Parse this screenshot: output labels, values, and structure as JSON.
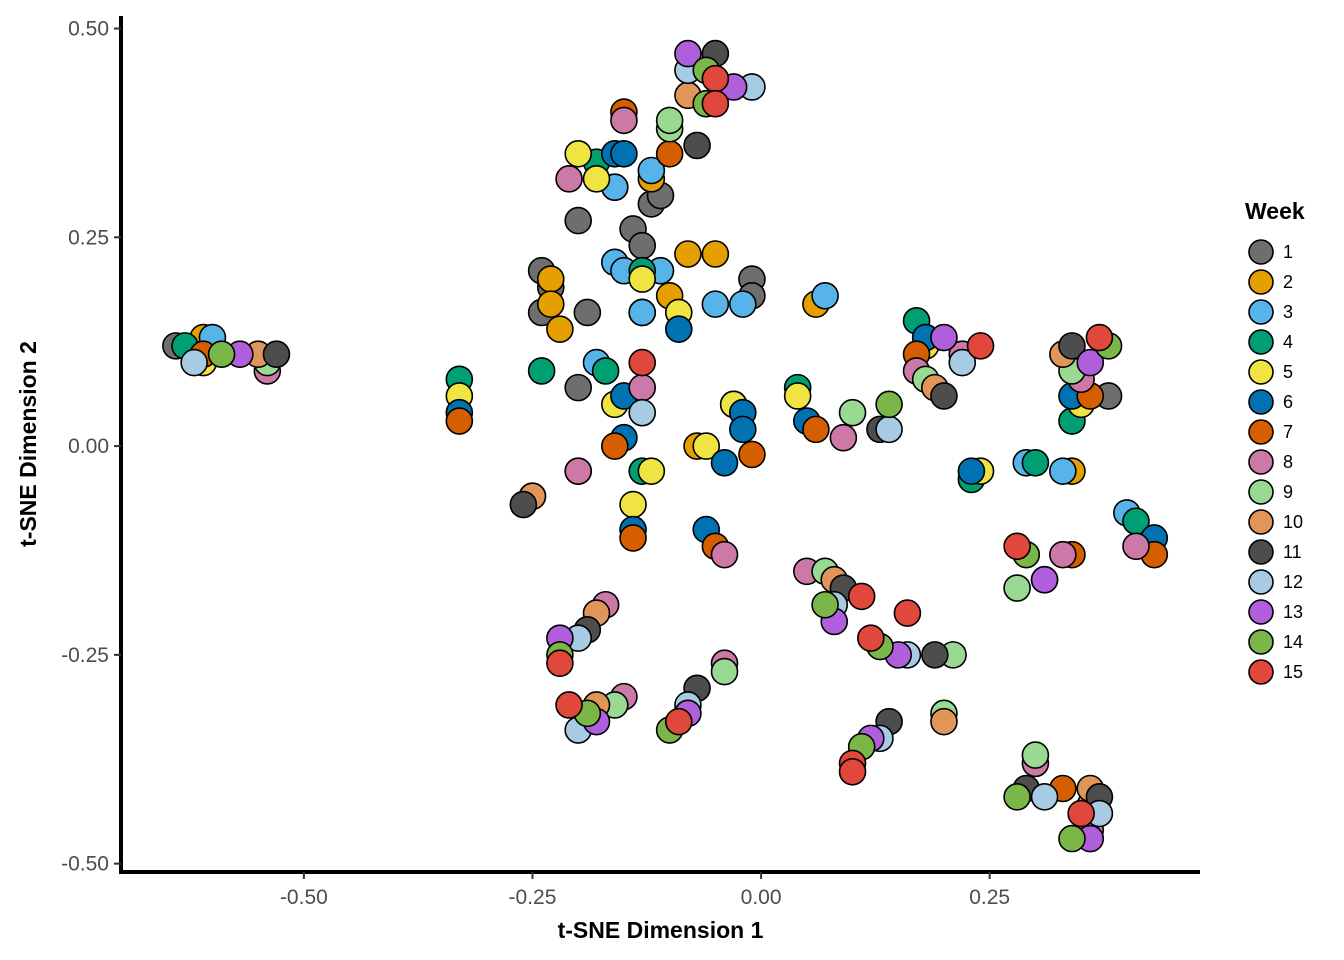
{
  "chart_data": {
    "type": "scatter",
    "xlabel": "t-SNE Dimension 1",
    "ylabel": "t-SNE Dimension 2",
    "xlim": [
      -0.7,
      0.48
    ],
    "ylim": [
      -0.51,
      0.515
    ],
    "x_ticks": [
      -0.5,
      -0.25,
      0.0,
      0.25
    ],
    "x_tick_labels": [
      "-0.50",
      "-0.25",
      "0.00",
      "0.25"
    ],
    "y_ticks": [
      0.5,
      0.25,
      0.0,
      -0.25,
      -0.5
    ],
    "y_tick_labels": [
      "0.50",
      "0.25",
      "0.00",
      "-0.25",
      "-0.50"
    ],
    "grid": false,
    "legend": {
      "title": "Week",
      "position": "right"
    },
    "series": [
      {
        "name": "1",
        "color": "#6e6e6e",
        "points": [
          [
            -0.64,
            0.12
          ],
          [
            -0.2,
            0.27
          ],
          [
            -0.14,
            0.26
          ],
          [
            -0.13,
            0.24
          ],
          [
            -0.12,
            0.29
          ],
          [
            -0.11,
            0.3
          ],
          [
            -0.24,
            0.21
          ],
          [
            -0.24,
            0.16
          ],
          [
            -0.19,
            0.16
          ],
          [
            -0.2,
            0.07
          ],
          [
            -0.01,
            0.2
          ],
          [
            -0.01,
            0.18
          ],
          [
            -0.23,
            0.19
          ],
          [
            0.38,
            0.06
          ]
        ]
      },
      {
        "name": "2",
        "color": "#e69f00",
        "points": [
          [
            -0.61,
            0.13
          ],
          [
            -0.23,
            0.2
          ],
          [
            -0.23,
            0.17
          ],
          [
            -0.22,
            0.14
          ],
          [
            -0.16,
            0.31
          ],
          [
            -0.12,
            0.32
          ],
          [
            -0.13,
            0.16
          ],
          [
            -0.1,
            0.18
          ],
          [
            -0.08,
            0.23
          ],
          [
            -0.05,
            0.23
          ],
          [
            -0.07,
            0.0
          ],
          [
            0.06,
            0.17
          ],
          [
            0.34,
            -0.03
          ]
        ]
      },
      {
        "name": "3",
        "color": "#56b4e9",
        "points": [
          [
            -0.6,
            0.13
          ],
          [
            -0.16,
            0.22
          ],
          [
            -0.15,
            0.21
          ],
          [
            -0.13,
            0.16
          ],
          [
            -0.12,
            0.33
          ],
          [
            -0.11,
            0.21
          ],
          [
            -0.16,
            0.31
          ],
          [
            -0.05,
            0.17
          ],
          [
            -0.02,
            0.17
          ],
          [
            0.07,
            0.18
          ],
          [
            -0.18,
            0.1
          ],
          [
            -0.03,
            0.05
          ],
          [
            0.29,
            -0.02
          ],
          [
            0.33,
            -0.03
          ],
          [
            0.4,
            -0.08
          ]
        ]
      },
      {
        "name": "4",
        "color": "#009e73",
        "points": [
          [
            -0.63,
            0.12
          ],
          [
            -0.33,
            0.08
          ],
          [
            -0.24,
            0.09
          ],
          [
            -0.17,
            0.09
          ],
          [
            -0.13,
            0.21
          ],
          [
            -0.18,
            0.34
          ],
          [
            -0.13,
            -0.03
          ],
          [
            0.04,
            0.07
          ],
          [
            0.17,
            0.15
          ],
          [
            0.23,
            -0.04
          ],
          [
            0.3,
            -0.02
          ],
          [
            0.34,
            0.03
          ],
          [
            0.41,
            -0.09
          ]
        ]
      },
      {
        "name": "5",
        "color": "#f0e442",
        "points": [
          [
            -0.61,
            0.1
          ],
          [
            -0.33,
            0.06
          ],
          [
            -0.2,
            0.35
          ],
          [
            -0.18,
            0.32
          ],
          [
            -0.13,
            0.2
          ],
          [
            -0.09,
            0.16
          ],
          [
            -0.16,
            0.05
          ],
          [
            -0.12,
            -0.03
          ],
          [
            -0.14,
            -0.07
          ],
          [
            -0.03,
            0.05
          ],
          [
            -0.06,
            0.0
          ],
          [
            0.04,
            0.06
          ],
          [
            0.18,
            0.12
          ],
          [
            0.24,
            -0.03
          ],
          [
            0.35,
            0.05
          ]
        ]
      },
      {
        "name": "6",
        "color": "#0072b2",
        "points": [
          [
            -0.33,
            0.04
          ],
          [
            -0.16,
            0.35
          ],
          [
            -0.15,
            0.35
          ],
          [
            -0.09,
            0.14
          ],
          [
            -0.15,
            0.06
          ],
          [
            -0.15,
            0.01
          ],
          [
            -0.14,
            -0.1
          ],
          [
            -0.06,
            -0.1
          ],
          [
            -0.02,
            0.04
          ],
          [
            -0.02,
            0.02
          ],
          [
            -0.04,
            -0.02
          ],
          [
            0.05,
            0.03
          ],
          [
            0.18,
            0.13
          ],
          [
            0.23,
            -0.03
          ],
          [
            0.34,
            0.06
          ],
          [
            0.43,
            -0.11
          ]
        ]
      },
      {
        "name": "7",
        "color": "#d55e00",
        "points": [
          [
            -0.61,
            0.11
          ],
          [
            -0.33,
            0.03
          ],
          [
            -0.15,
            0.4
          ],
          [
            -0.1,
            0.35
          ],
          [
            -0.16,
            0.0
          ],
          [
            -0.14,
            -0.11
          ],
          [
            -0.05,
            -0.12
          ],
          [
            -0.01,
            -0.01
          ],
          [
            0.06,
            0.02
          ],
          [
            0.17,
            0.11
          ],
          [
            -0.2,
            -0.03
          ],
          [
            0.34,
            -0.13
          ],
          [
            0.36,
            0.06
          ],
          [
            0.43,
            -0.13
          ],
          [
            0.33,
            -0.41
          ]
        ]
      },
      {
        "name": "8",
        "color": "#cc79a7",
        "points": [
          [
            -0.54,
            0.09
          ],
          [
            -0.21,
            0.32
          ],
          [
            -0.15,
            0.39
          ],
          [
            -0.13,
            0.07
          ],
          [
            -0.2,
            -0.03
          ],
          [
            -0.04,
            -0.13
          ],
          [
            0.09,
            0.01
          ],
          [
            0.17,
            0.09
          ],
          [
            0.22,
            0.11
          ],
          [
            0.35,
            0.08
          ],
          [
            0.41,
            -0.12
          ],
          [
            0.33,
            -0.13
          ],
          [
            0.05,
            -0.15
          ],
          [
            -0.17,
            -0.19
          ],
          [
            -0.15,
            -0.3
          ],
          [
            -0.04,
            -0.26
          ],
          [
            0.3,
            -0.38
          ],
          [
            0.36,
            -0.46
          ]
        ]
      },
      {
        "name": "9",
        "color": "#9ad991",
        "points": [
          [
            -0.54,
            0.1
          ],
          [
            -0.25,
            -0.06
          ],
          [
            -0.1,
            0.38
          ],
          [
            -0.1,
            0.39
          ],
          [
            0.1,
            0.04
          ],
          [
            0.18,
            0.08
          ],
          [
            0.34,
            0.09
          ],
          [
            0.07,
            -0.15
          ],
          [
            0.21,
            -0.25
          ],
          [
            0.2,
            -0.32
          ],
          [
            -0.04,
            -0.27
          ],
          [
            -0.16,
            -0.31
          ],
          [
            0.28,
            -0.17
          ],
          [
            0.3,
            -0.37
          ],
          [
            0.36,
            -0.43
          ]
        ]
      },
      {
        "name": "10",
        "color": "#e0965a",
        "points": [
          [
            -0.55,
            0.11
          ],
          [
            -0.25,
            -0.06
          ],
          [
            -0.08,
            0.42
          ],
          [
            0.08,
            -0.16
          ],
          [
            0.2,
            -0.33
          ],
          [
            -0.18,
            -0.2
          ],
          [
            -0.18,
            -0.31
          ],
          [
            0.19,
            0.07
          ],
          [
            0.36,
            -0.41
          ],
          [
            0.33,
            0.11
          ]
        ]
      },
      {
        "name": "11",
        "color": "#4d4d4d",
        "points": [
          [
            -0.53,
            0.11
          ],
          [
            -0.26,
            -0.07
          ],
          [
            -0.05,
            0.47
          ],
          [
            -0.07,
            0.36
          ],
          [
            0.09,
            -0.17
          ],
          [
            0.2,
            0.06
          ],
          [
            0.19,
            -0.25
          ],
          [
            0.34,
            0.12
          ],
          [
            0.37,
            -0.42
          ],
          [
            0.13,
            0.02
          ],
          [
            -0.19,
            -0.22
          ],
          [
            -0.07,
            -0.29
          ],
          [
            0.14,
            -0.33
          ],
          [
            0.29,
            -0.41
          ]
        ]
      },
      {
        "name": "12",
        "color": "#a6cbe3",
        "points": [
          [
            -0.62,
            0.1
          ],
          [
            -0.13,
            0.04
          ],
          [
            -0.08,
            0.45
          ],
          [
            -0.01,
            0.43
          ],
          [
            0.14,
            0.02
          ],
          [
            0.22,
            0.1
          ],
          [
            -0.2,
            -0.23
          ],
          [
            -0.2,
            -0.34
          ],
          [
            -0.08,
            -0.31
          ],
          [
            0.08,
            -0.19
          ],
          [
            0.16,
            -0.25
          ],
          [
            0.31,
            -0.16
          ],
          [
            0.31,
            -0.42
          ],
          [
            0.37,
            -0.44
          ],
          [
            0.13,
            -0.35
          ]
        ]
      },
      {
        "name": "13",
        "color": "#b05fdc",
        "points": [
          [
            -0.57,
            0.11
          ],
          [
            -0.08,
            0.47
          ],
          [
            -0.03,
            0.43
          ],
          [
            0.2,
            0.13
          ],
          [
            0.36,
            0.1
          ],
          [
            -0.22,
            -0.23
          ],
          [
            -0.18,
            -0.33
          ],
          [
            -0.08,
            -0.32
          ],
          [
            0.08,
            -0.21
          ],
          [
            0.15,
            -0.25
          ],
          [
            0.31,
            -0.16
          ],
          [
            0.36,
            -0.47
          ],
          [
            0.12,
            -0.35
          ]
        ]
      },
      {
        "name": "14",
        "color": "#7ab648",
        "points": [
          [
            -0.59,
            0.11
          ],
          [
            -0.06,
            0.45
          ],
          [
            -0.06,
            0.41
          ],
          [
            0.14,
            0.05
          ],
          [
            0.38,
            0.12
          ],
          [
            -0.22,
            -0.25
          ],
          [
            -0.19,
            -0.32
          ],
          [
            -0.1,
            -0.34
          ],
          [
            0.07,
            -0.19
          ],
          [
            0.13,
            -0.24
          ],
          [
            0.28,
            -0.42
          ],
          [
            0.34,
            -0.47
          ],
          [
            0.29,
            -0.13
          ],
          [
            0.11,
            -0.36
          ]
        ]
      },
      {
        "name": "15",
        "color": "#e0483b",
        "points": [
          [
            -0.05,
            0.44
          ],
          [
            -0.05,
            0.41
          ],
          [
            -0.13,
            0.1
          ],
          [
            0.24,
            0.12
          ],
          [
            0.37,
            0.13
          ],
          [
            0.28,
            -0.12
          ],
          [
            -0.22,
            -0.26
          ],
          [
            -0.21,
            -0.31
          ],
          [
            -0.09,
            -0.33
          ],
          [
            0.11,
            -0.18
          ],
          [
            0.12,
            -0.23
          ],
          [
            0.16,
            -0.2
          ],
          [
            0.1,
            -0.38
          ],
          [
            0.1,
            -0.39
          ],
          [
            0.35,
            -0.44
          ]
        ]
      }
    ]
  }
}
